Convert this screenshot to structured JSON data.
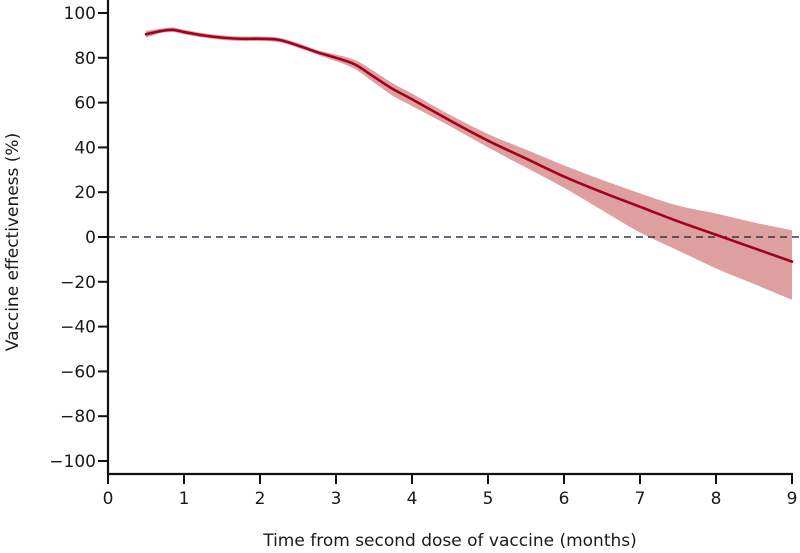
{
  "chart_data": {
    "type": "line",
    "title": "",
    "xlabel": "Time from second dose of vaccine (months)",
    "ylabel": "Vaccine effectiveness (%)",
    "xlim": [
      0,
      9
    ],
    "ylim": [
      -105,
      105
    ],
    "xticks": [
      0,
      1,
      2,
      3,
      4,
      5,
      6,
      7,
      8,
      9
    ],
    "yticks": [
      100,
      80,
      60,
      40,
      20,
      0,
      -20,
      -40,
      -60,
      -80,
      -100
    ],
    "ytick_labels": [
      "100",
      "80",
      "60",
      "40",
      "20",
      "0",
      "−20",
      "−40",
      "−60",
      "−80",
      "−100"
    ],
    "grid": false,
    "legend": null,
    "reference_line": {
      "y": 0,
      "style": "dashed",
      "color": "#2b3a4a"
    },
    "series": [
      {
        "name": "Vaccine effectiveness",
        "color": "#a3001f",
        "x": [
          0.5,
          0.7,
          0.85,
          1.0,
          1.25,
          1.5,
          1.75,
          2.0,
          2.25,
          2.5,
          2.75,
          3.0,
          3.25,
          3.5,
          3.75,
          4.0,
          4.5,
          5.0,
          5.5,
          6.0,
          6.5,
          7.0,
          7.5,
          8.0,
          8.5,
          9.0
        ],
        "y": [
          90.5,
          92.0,
          92.5,
          91.5,
          90.0,
          89.0,
          88.5,
          88.5,
          88.0,
          85.5,
          82.5,
          80.0,
          77.0,
          71.5,
          66.0,
          61.5,
          52.0,
          43.0,
          35.0,
          27.0,
          20.0,
          13.5,
          7.0,
          1.0,
          -5.0,
          -11.0
        ],
        "ci_lower": [
          89.0,
          91.0,
          91.5,
          90.5,
          89.0,
          88.0,
          87.5,
          87.5,
          87.0,
          84.5,
          81.5,
          78.5,
          75.0,
          69.0,
          63.0,
          58.5,
          49.5,
          40.0,
          31.0,
          22.0,
          12.0,
          2.0,
          -6.0,
          -14.0,
          -21.0,
          -28.0
        ],
        "ci_upper": [
          92.0,
          93.0,
          93.5,
          92.5,
          91.0,
          90.0,
          89.5,
          89.5,
          89.0,
          86.5,
          83.5,
          81.5,
          79.0,
          74.0,
          68.5,
          64.0,
          54.5,
          46.0,
          39.0,
          32.0,
          25.5,
          19.5,
          14.0,
          10.5,
          6.5,
          3.0
        ],
        "ci_color": "#dc9a9a"
      }
    ]
  },
  "axes": {
    "x_title": "Time from second dose of vaccine (months)",
    "y_title": "Vaccine effectiveness (%)"
  }
}
